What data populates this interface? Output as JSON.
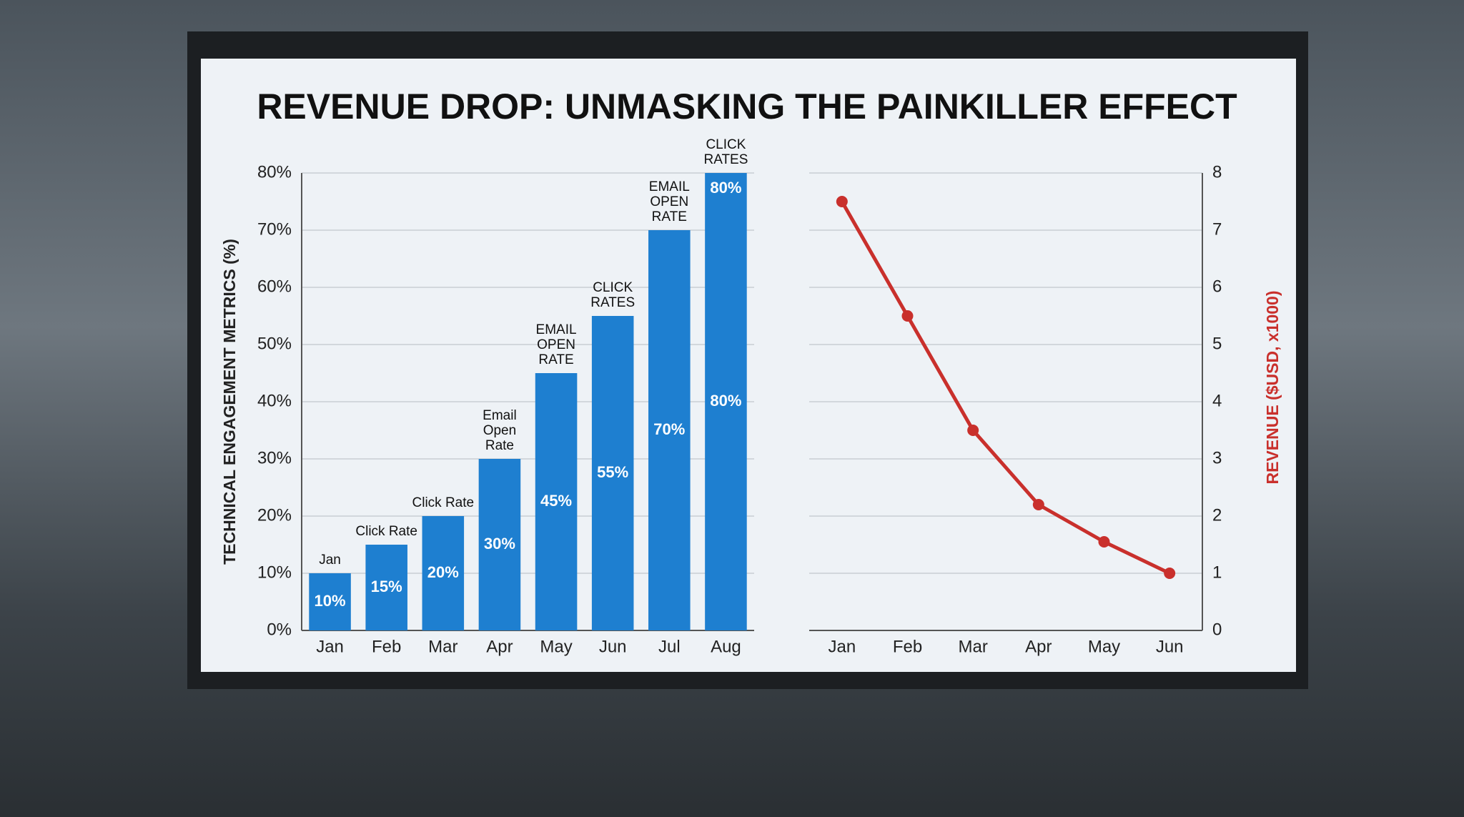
{
  "chart_data": [
    {
      "type": "bar",
      "title": "REVENUE DROP: UNMASKING THE PAINKILLER EFFECT",
      "y_label": "TECHNICAL ENGAGEMENT METRICS (%)",
      "categories": [
        "Jan",
        "Feb",
        "Mar",
        "Apr",
        "May",
        "Jun",
        "Jul",
        "Aug"
      ],
      "values": [
        10,
        15,
        20,
        30,
        45,
        55,
        70,
        80
      ],
      "value_labels": [
        "10%",
        "15%",
        "20%",
        "30%",
        "45%",
        "55%",
        "70%",
        "80%"
      ],
      "top_labels": [
        null,
        null,
        null,
        null,
        null,
        null,
        null,
        "80%"
      ],
      "annotations": [
        "Jan",
        "Click Rate",
        "Click Rate",
        "Email Open Rate",
        "EMAIL OPEN RATE",
        "CLICK RATES",
        "EMAIL OPEN RATE",
        "CLICK RATES"
      ],
      "color": "#1e7fd0",
      "ylim": [
        0,
        80
      ],
      "yticks": [
        {
          "value": 0,
          "label": "0%"
        },
        {
          "value": 10,
          "label": "10%"
        },
        {
          "value": 20,
          "label": "20%"
        },
        {
          "value": 30,
          "label": "30%"
        },
        {
          "value": 40,
          "label": "40%"
        },
        {
          "value": 50,
          "label": "50%"
        },
        {
          "value": 60,
          "label": "60%"
        },
        {
          "value": 70,
          "label": "70%"
        },
        {
          "value": 80,
          "label": "80%"
        }
      ],
      "grid": true,
      "y_axis_side": "left"
    },
    {
      "type": "line",
      "y_label": "REVENUE ($USD, x1000)",
      "categories": [
        "Jan",
        "Feb",
        "Mar",
        "Apr",
        "May",
        "Jun"
      ],
      "values": [
        7.5,
        5.5,
        3.5,
        2.2,
        1.55,
        1.0
      ],
      "color": "#c9302c",
      "ylim": [
        0,
        8
      ],
      "yticks": [
        0,
        1,
        2,
        3,
        4,
        5,
        6,
        7,
        8
      ],
      "grid": true,
      "y_axis_side": "right"
    }
  ]
}
